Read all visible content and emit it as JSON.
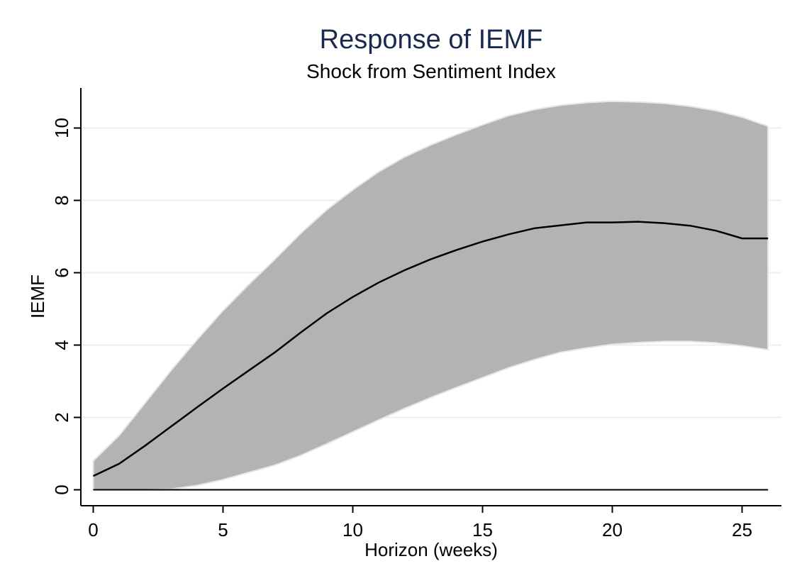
{
  "chart_data": {
    "type": "area",
    "title": "Response of IEMF",
    "subtitle": "Shock from Sentiment Index",
    "xlabel": "Horizon (weeks)",
    "ylabel": "IEMF",
    "xlim": [
      0,
      26
    ],
    "ylim": [
      0,
      10
    ],
    "xticks": [
      0,
      5,
      10,
      15,
      20,
      25
    ],
    "yticks": [
      0,
      2,
      4,
      6,
      8,
      10
    ],
    "grid": true,
    "legend": "none",
    "colors": {
      "band": "#b3b3b3",
      "band_edge": "#e6e6e6",
      "line": "#000000",
      "grid": "#e8f0ef",
      "title": "#1a2a4f",
      "axis": "#000000"
    },
    "x": [
      0,
      1,
      2,
      3,
      4,
      5,
      6,
      7,
      8,
      9,
      10,
      11,
      12,
      13,
      14,
      15,
      16,
      17,
      18,
      19,
      20,
      21,
      22,
      23,
      24,
      25,
      26
    ],
    "irf": [
      0.38,
      0.72,
      1.22,
      1.75,
      2.28,
      2.8,
      3.3,
      3.8,
      4.35,
      4.88,
      5.33,
      5.73,
      6.07,
      6.37,
      6.63,
      6.86,
      7.06,
      7.23,
      7.31,
      7.39,
      7.39,
      7.41,
      7.37,
      7.3,
      7.16,
      6.95,
      6.95
    ],
    "upper": [
      0.8,
      1.5,
      2.4,
      3.3,
      4.15,
      4.95,
      5.68,
      6.37,
      7.09,
      7.74,
      8.29,
      8.79,
      9.2,
      9.53,
      9.82,
      10.09,
      10.34,
      10.51,
      10.63,
      10.7,
      10.74,
      10.72,
      10.68,
      10.6,
      10.48,
      10.3,
      10.05
    ],
    "lower": [
      0.0,
      0.0,
      0.0,
      0.02,
      0.12,
      0.28,
      0.48,
      0.68,
      0.95,
      1.27,
      1.6,
      1.93,
      2.25,
      2.55,
      2.83,
      3.1,
      3.37,
      3.6,
      3.8,
      3.92,
      4.02,
      4.07,
      4.1,
      4.1,
      4.06,
      3.98,
      3.87
    ],
    "zero_line": 0
  }
}
